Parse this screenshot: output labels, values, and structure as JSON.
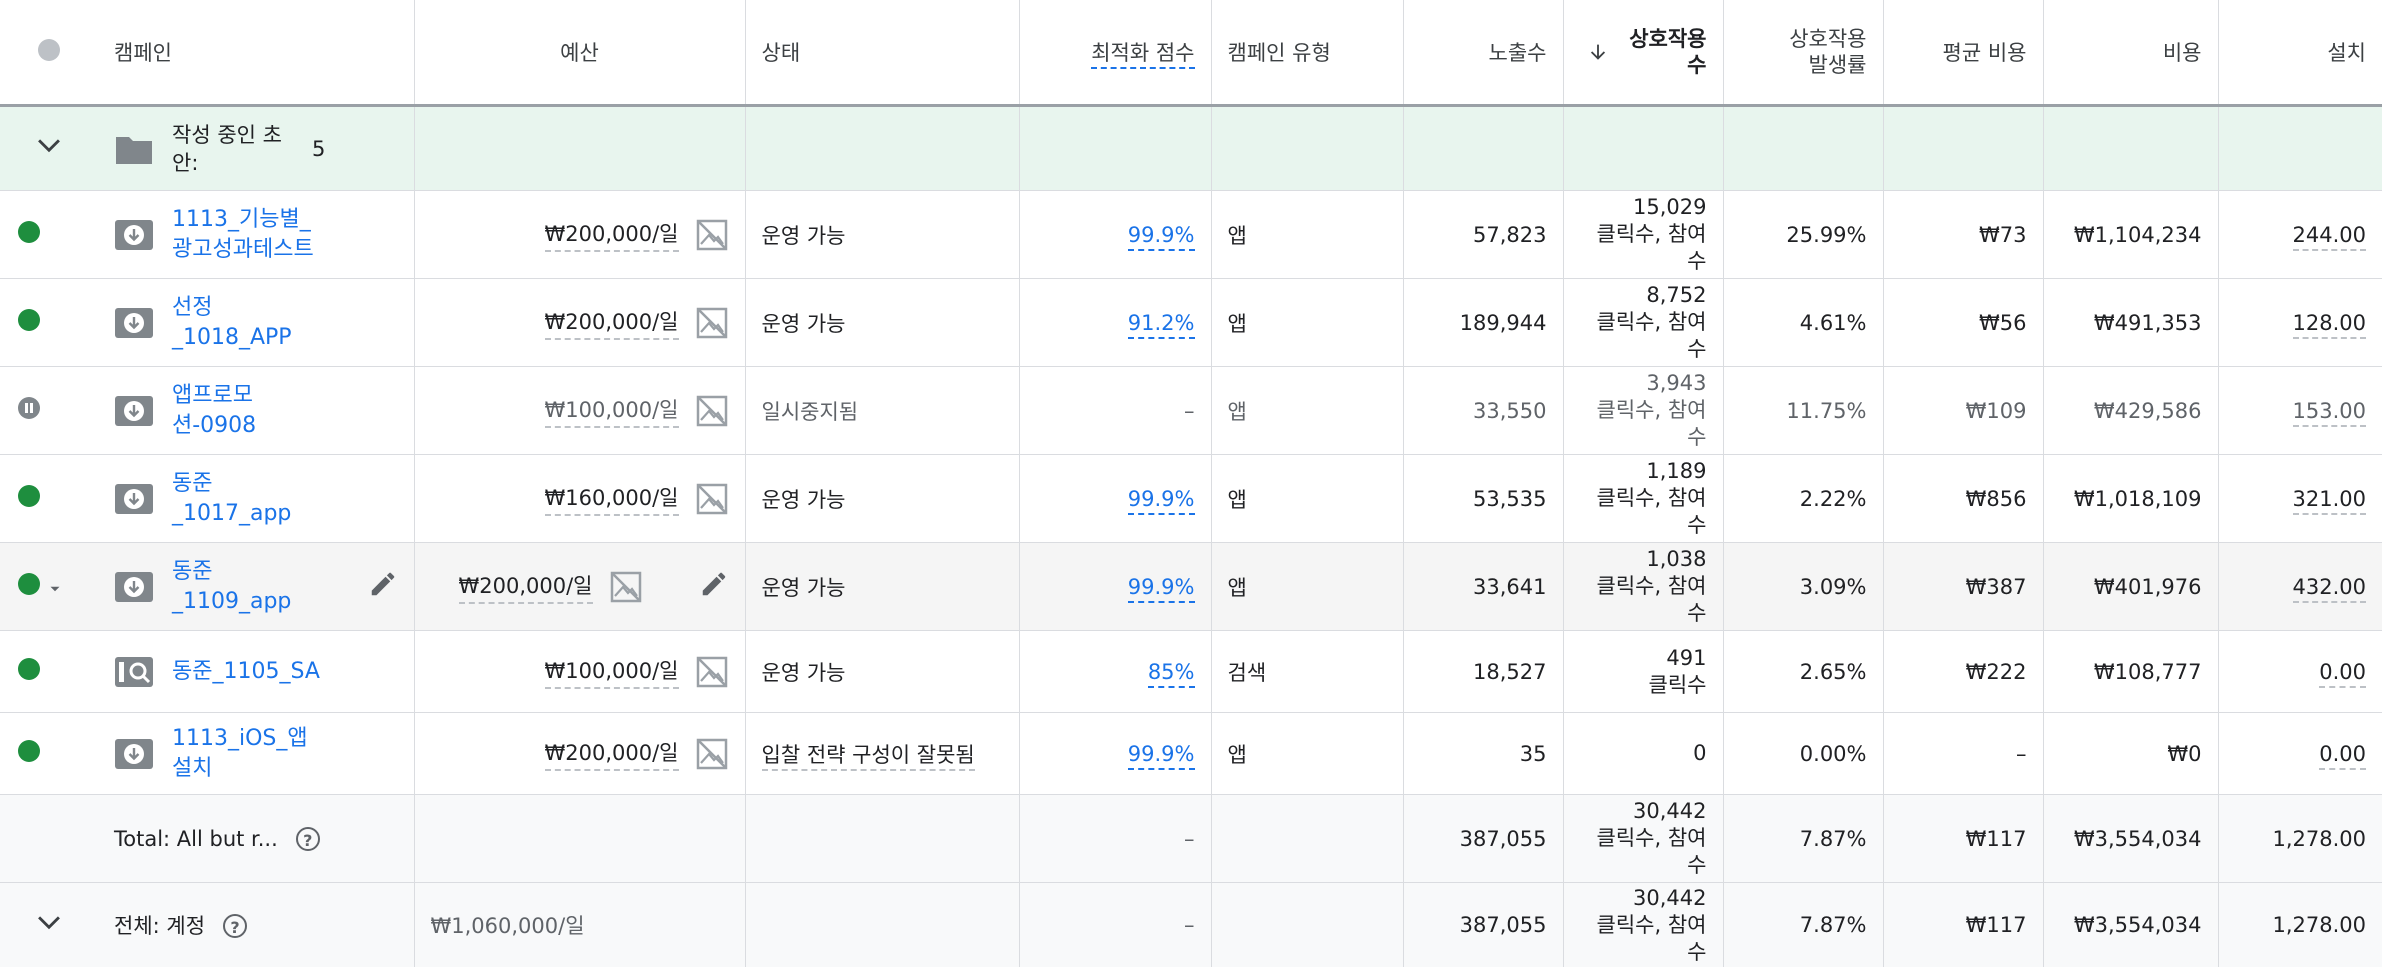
{
  "columns": {
    "campaign": "캠페인",
    "budget": "예산",
    "status": "상태",
    "score": "최적화 점수",
    "type": "캠페인 유형",
    "impressions": "노출수",
    "interactions": "상호작용수",
    "interaction_rate": "상호작용 발생률",
    "avg_cost": "평균 비용",
    "cost": "비용",
    "installs": "설치"
  },
  "draft": {
    "label": "작성 중인 초안:",
    "count": "5"
  },
  "rows": [
    {
      "name": "1113_기능별_광고성과테스트",
      "budget": "₩200,000/일",
      "status": "운영 가능",
      "score": "99.9%",
      "type": "앱",
      "impressions": "57,823",
      "interactions": "15,029",
      "interactions_unit": "클릭수, 참여수",
      "rate": "25.99%",
      "avg_cost": "₩73",
      "cost": "₩1,104,234",
      "installs": "244.00"
    },
    {
      "name": "선정_1018_APP",
      "budget": "₩200,000/일",
      "status": "운영 가능",
      "score": "91.2%",
      "type": "앱",
      "impressions": "189,944",
      "interactions": "8,752",
      "interactions_unit": "클릭수, 참여수",
      "rate": "4.61%",
      "avg_cost": "₩56",
      "cost": "₩491,353",
      "installs": "128.00"
    },
    {
      "name": "앱프로모션-0908",
      "budget": "₩100,000/일",
      "status": "일시중지됨",
      "score": "–",
      "type": "앱",
      "impressions": "33,550",
      "interactions": "3,943",
      "interactions_unit": "클릭수, 참여수",
      "rate": "11.75%",
      "avg_cost": "₩109",
      "cost": "₩429,586",
      "installs": "153.00"
    },
    {
      "name": "동준_1017_app",
      "budget": "₩160,000/일",
      "status": "운영 가능",
      "score": "99.9%",
      "type": "앱",
      "impressions": "53,535",
      "interactions": "1,189",
      "interactions_unit": "클릭수, 참여수",
      "rate": "2.22%",
      "avg_cost": "₩856",
      "cost": "₩1,018,109",
      "installs": "321.00"
    },
    {
      "name": "동준_1109_app",
      "budget": "₩200,000/일",
      "status": "운영 가능",
      "score": "99.9%",
      "type": "앱",
      "impressions": "33,641",
      "interactions": "1,038",
      "interactions_unit": "클릭수, 참여수",
      "rate": "3.09%",
      "avg_cost": "₩387",
      "cost": "₩401,976",
      "installs": "432.00"
    },
    {
      "name": "동준_1105_SA",
      "budget": "₩100,000/일",
      "status": "운영 가능",
      "score": "85%",
      "type": "검색",
      "impressions": "18,527",
      "interactions": "491",
      "interactions_unit": "클릭수",
      "rate": "2.65%",
      "avg_cost": "₩222",
      "cost": "₩108,777",
      "installs": "0.00"
    },
    {
      "name": "1113_iOS_앱설치",
      "budget": "₩200,000/일",
      "status": "입찰 전략 구성이 잘못됨",
      "score": "99.9%",
      "type": "앱",
      "impressions": "35",
      "interactions": "0",
      "interactions_unit": "",
      "rate": "0.00%",
      "avg_cost": "–",
      "cost": "₩0",
      "installs": "0.00"
    }
  ],
  "total": {
    "label": "Total: All but r...",
    "score": "–",
    "impressions": "387,055",
    "interactions": "30,442",
    "interactions_unit": "클릭수, 참여수",
    "rate": "7.87%",
    "avg_cost": "₩117",
    "cost": "₩3,554,034",
    "installs": "1,278.00"
  },
  "account": {
    "label": "전체: 계정",
    "budget": "₩1,060,000/일",
    "score": "–",
    "impressions": "387,055",
    "interactions": "30,442",
    "interactions_unit": "클릭수, 참여수",
    "rate": "7.87%",
    "avg_cost": "₩117",
    "cost": "₩3,554,034",
    "installs": "1,278.00"
  },
  "colors": {
    "active": "#1e8e3e",
    "link": "#1a73e8",
    "draft_bg": "#e8f5ee"
  },
  "icons": {
    "download": "app-download-icon",
    "search": "search-campaign-icon",
    "no_image": "image-off-icon",
    "edit": "pencil-icon",
    "folder": "folder-icon",
    "help": "help-circle-icon",
    "chevron": "chevron-down-icon",
    "sort": "arrow-down-icon"
  }
}
